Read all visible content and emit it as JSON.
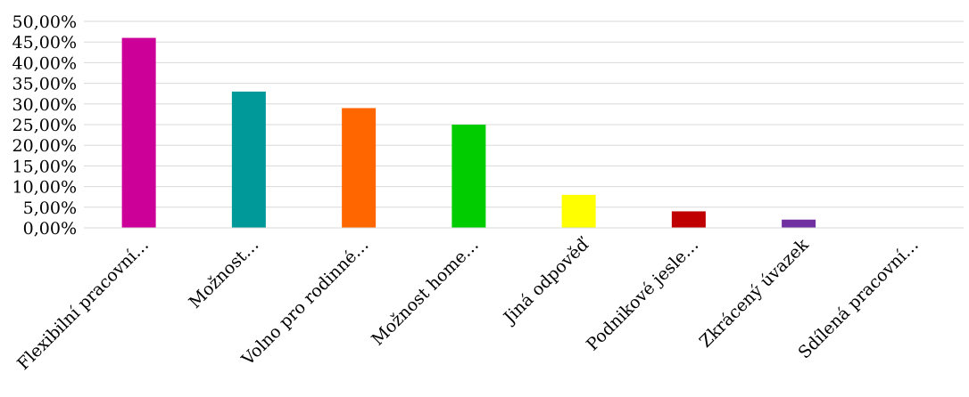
{
  "chart_data": {
    "type": "bar",
    "title": "",
    "xlabel": "",
    "ylabel": "",
    "categories": [
      "Flexibilní pracovní…",
      "Možnost…",
      "Volno pro rodinné…",
      "Možnost home…",
      "Jiná odpověď",
      "Podnikové jesle…",
      "Zkrácený úvazek",
      "Sdílená pracovní…"
    ],
    "values": [
      46.0,
      33.0,
      29.0,
      25.0,
      8.0,
      4.0,
      2.0,
      0.0
    ],
    "colors": [
      "#cc0099",
      "#009999",
      "#ff6600",
      "#00cc00",
      "#ffff00",
      "#c00000",
      "#7030a0",
      "#7f7f7f"
    ],
    "ylim": [
      0,
      50
    ],
    "yticks": [
      "0,00%",
      "5,00%",
      "10,00%",
      "15,00%",
      "20,00%",
      "25,00%",
      "30,00%",
      "35,00%",
      "40,00%",
      "45,00%",
      "50,00%"
    ],
    "grid": true,
    "legend": "none"
  }
}
